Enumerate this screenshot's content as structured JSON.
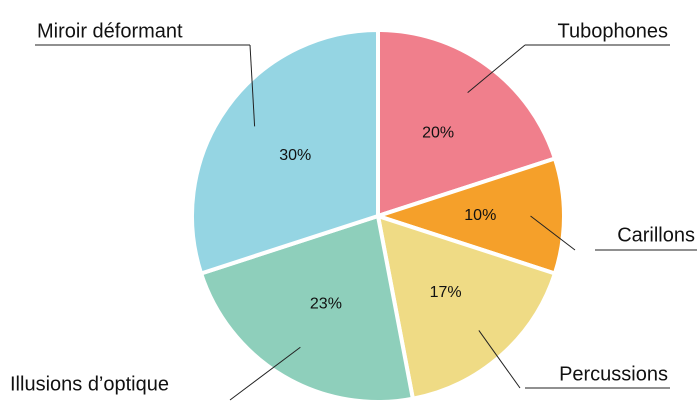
{
  "chart_data": {
    "type": "pie",
    "categories": [
      "Tubophones",
      "Carillons",
      "Percussions",
      "Illusions d’optique",
      "Miroir déformant"
    ],
    "values": [
      20,
      10,
      17,
      23,
      30
    ],
    "value_labels": [
      "20%",
      "10%",
      "17%",
      "23%",
      "30%"
    ],
    "colors": [
      "#f07f8c",
      "#f5a02a",
      "#efdb85",
      "#8ecfbb",
      "#95d5e3"
    ]
  }
}
